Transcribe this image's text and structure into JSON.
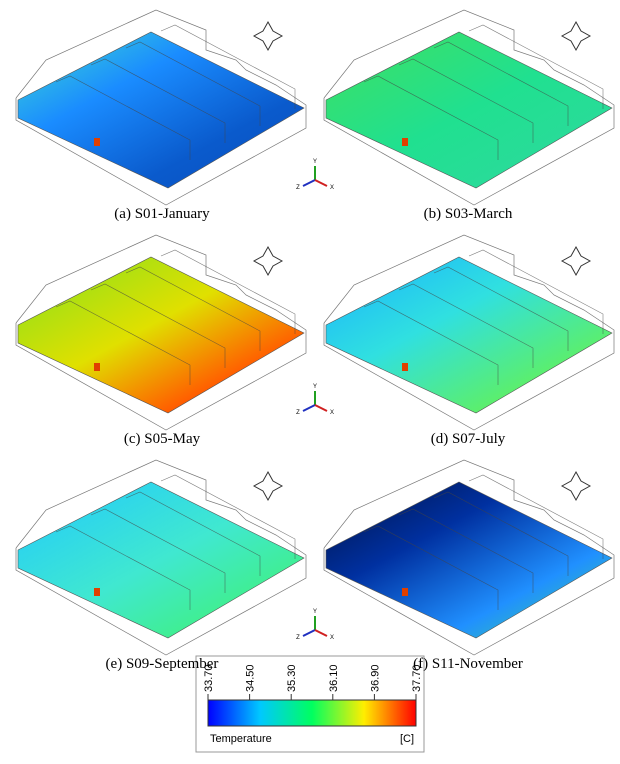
{
  "panels": [
    {
      "caption": "(a) S01-January"
    },
    {
      "caption": "(b) S03-March"
    },
    {
      "caption": "(c) S05-May"
    },
    {
      "caption": "(d) S07-July"
    },
    {
      "caption": "(e) S09-September"
    },
    {
      "caption": "(f) S11-November"
    }
  ],
  "axis_labels": [
    "Y",
    "Z",
    "X"
  ],
  "colorbar": {
    "title": "Temperature",
    "unit": "[C]",
    "ticks": [
      {
        "value": 33.7,
        "label": "33.70"
      },
      {
        "value": 34.5,
        "label": "34.50"
      },
      {
        "value": 35.3,
        "label": "35.30"
      },
      {
        "value": 36.1,
        "label": "36.10"
      },
      {
        "value": 36.9,
        "label": "36.90"
      },
      {
        "value": 37.7,
        "label": "37.70"
      }
    ]
  }
}
